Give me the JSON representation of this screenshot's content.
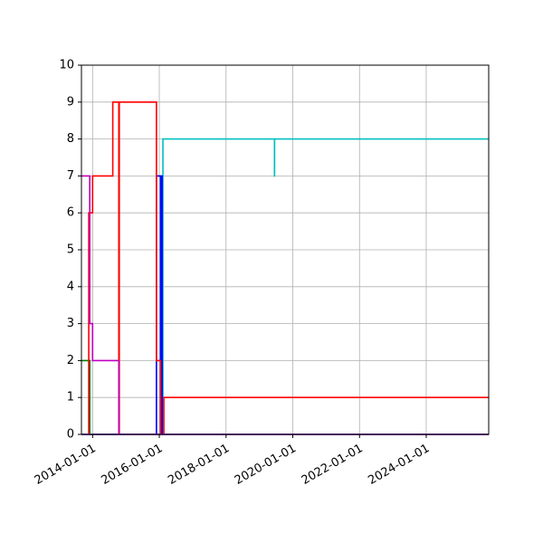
{
  "chart_data": {
    "type": "line",
    "title": "",
    "xlabel": "",
    "ylabel": "",
    "grid": true,
    "xlim": [
      "2013-09-01",
      "2025-11-15"
    ],
    "ylim": [
      0,
      10
    ],
    "x_ticks": [
      "2014-01-01",
      "2016-01-01",
      "2018-01-01",
      "2020-01-01",
      "2022-01-01",
      "2024-01-01"
    ],
    "y_ticks": [
      0,
      1,
      2,
      3,
      4,
      5,
      6,
      7,
      8,
      9,
      10
    ],
    "series": [
      {
        "color": "#00bfbf",
        "step": "post",
        "points": [
          [
            "2013-09-01",
            0
          ],
          [
            "2016-02-10",
            0
          ],
          [
            "2016-02-10",
            8
          ],
          [
            "2019-06-15",
            8
          ],
          [
            "2019-06-15",
            7
          ],
          [
            "2019-06-16",
            7
          ],
          [
            "2019-06-16",
            8
          ],
          [
            "2025-11-15",
            8
          ]
        ]
      },
      {
        "color": "#008000",
        "step": "post",
        "points": [
          [
            "2013-09-01",
            2
          ],
          [
            "2013-12-01",
            2
          ],
          [
            "2013-12-01",
            0
          ],
          [
            "2025-11-15",
            0
          ]
        ]
      },
      {
        "color": "#0000ff",
        "step": "post",
        "points": [
          [
            "2013-09-01",
            0
          ],
          [
            "2015-12-01",
            0
          ],
          [
            "2015-12-01",
            7
          ],
          [
            "2016-01-15",
            7
          ],
          [
            "2016-01-15",
            0
          ],
          [
            "2016-01-20",
            0
          ],
          [
            "2016-01-20",
            7
          ],
          [
            "2016-02-01",
            7
          ],
          [
            "2016-02-01",
            0
          ],
          [
            "2025-11-15",
            0
          ]
        ]
      },
      {
        "color": "#ff0000",
        "step": "post",
        "points": [
          [
            "2013-11-20",
            0
          ],
          [
            "2013-11-20",
            6
          ],
          [
            "2014-01-01",
            6
          ],
          [
            "2014-01-01",
            7
          ],
          [
            "2014-08-10",
            7
          ],
          [
            "2014-08-10",
            9
          ],
          [
            "2014-10-15",
            9
          ],
          [
            "2014-10-15",
            0
          ],
          [
            "2014-10-20",
            0
          ],
          [
            "2014-10-20",
            9
          ],
          [
            "2015-12-01",
            9
          ],
          [
            "2015-12-01",
            2
          ],
          [
            "2016-01-15",
            2
          ],
          [
            "2016-01-15",
            0
          ],
          [
            "2016-02-20",
            0
          ],
          [
            "2016-02-20",
            1
          ],
          [
            "2025-11-15",
            1
          ]
        ]
      },
      {
        "color": "#bf00bf",
        "step": "post",
        "points": [
          [
            "2013-09-01",
            7
          ],
          [
            "2013-12-01",
            7
          ],
          [
            "2013-12-01",
            3
          ],
          [
            "2014-01-01",
            3
          ],
          [
            "2014-01-01",
            2
          ],
          [
            "2014-10-15",
            2
          ],
          [
            "2014-10-15",
            0
          ],
          [
            "2025-11-15",
            0
          ]
        ]
      },
      {
        "color": "#bfbf00",
        "step": "post",
        "points": [
          [
            "2013-09-01",
            0
          ],
          [
            "2025-11-15",
            0
          ]
        ]
      },
      {
        "color": "#7f00ff",
        "step": "post",
        "points": [
          [
            "2013-09-01",
            0
          ],
          [
            "2025-11-15",
            0
          ]
        ]
      }
    ]
  }
}
